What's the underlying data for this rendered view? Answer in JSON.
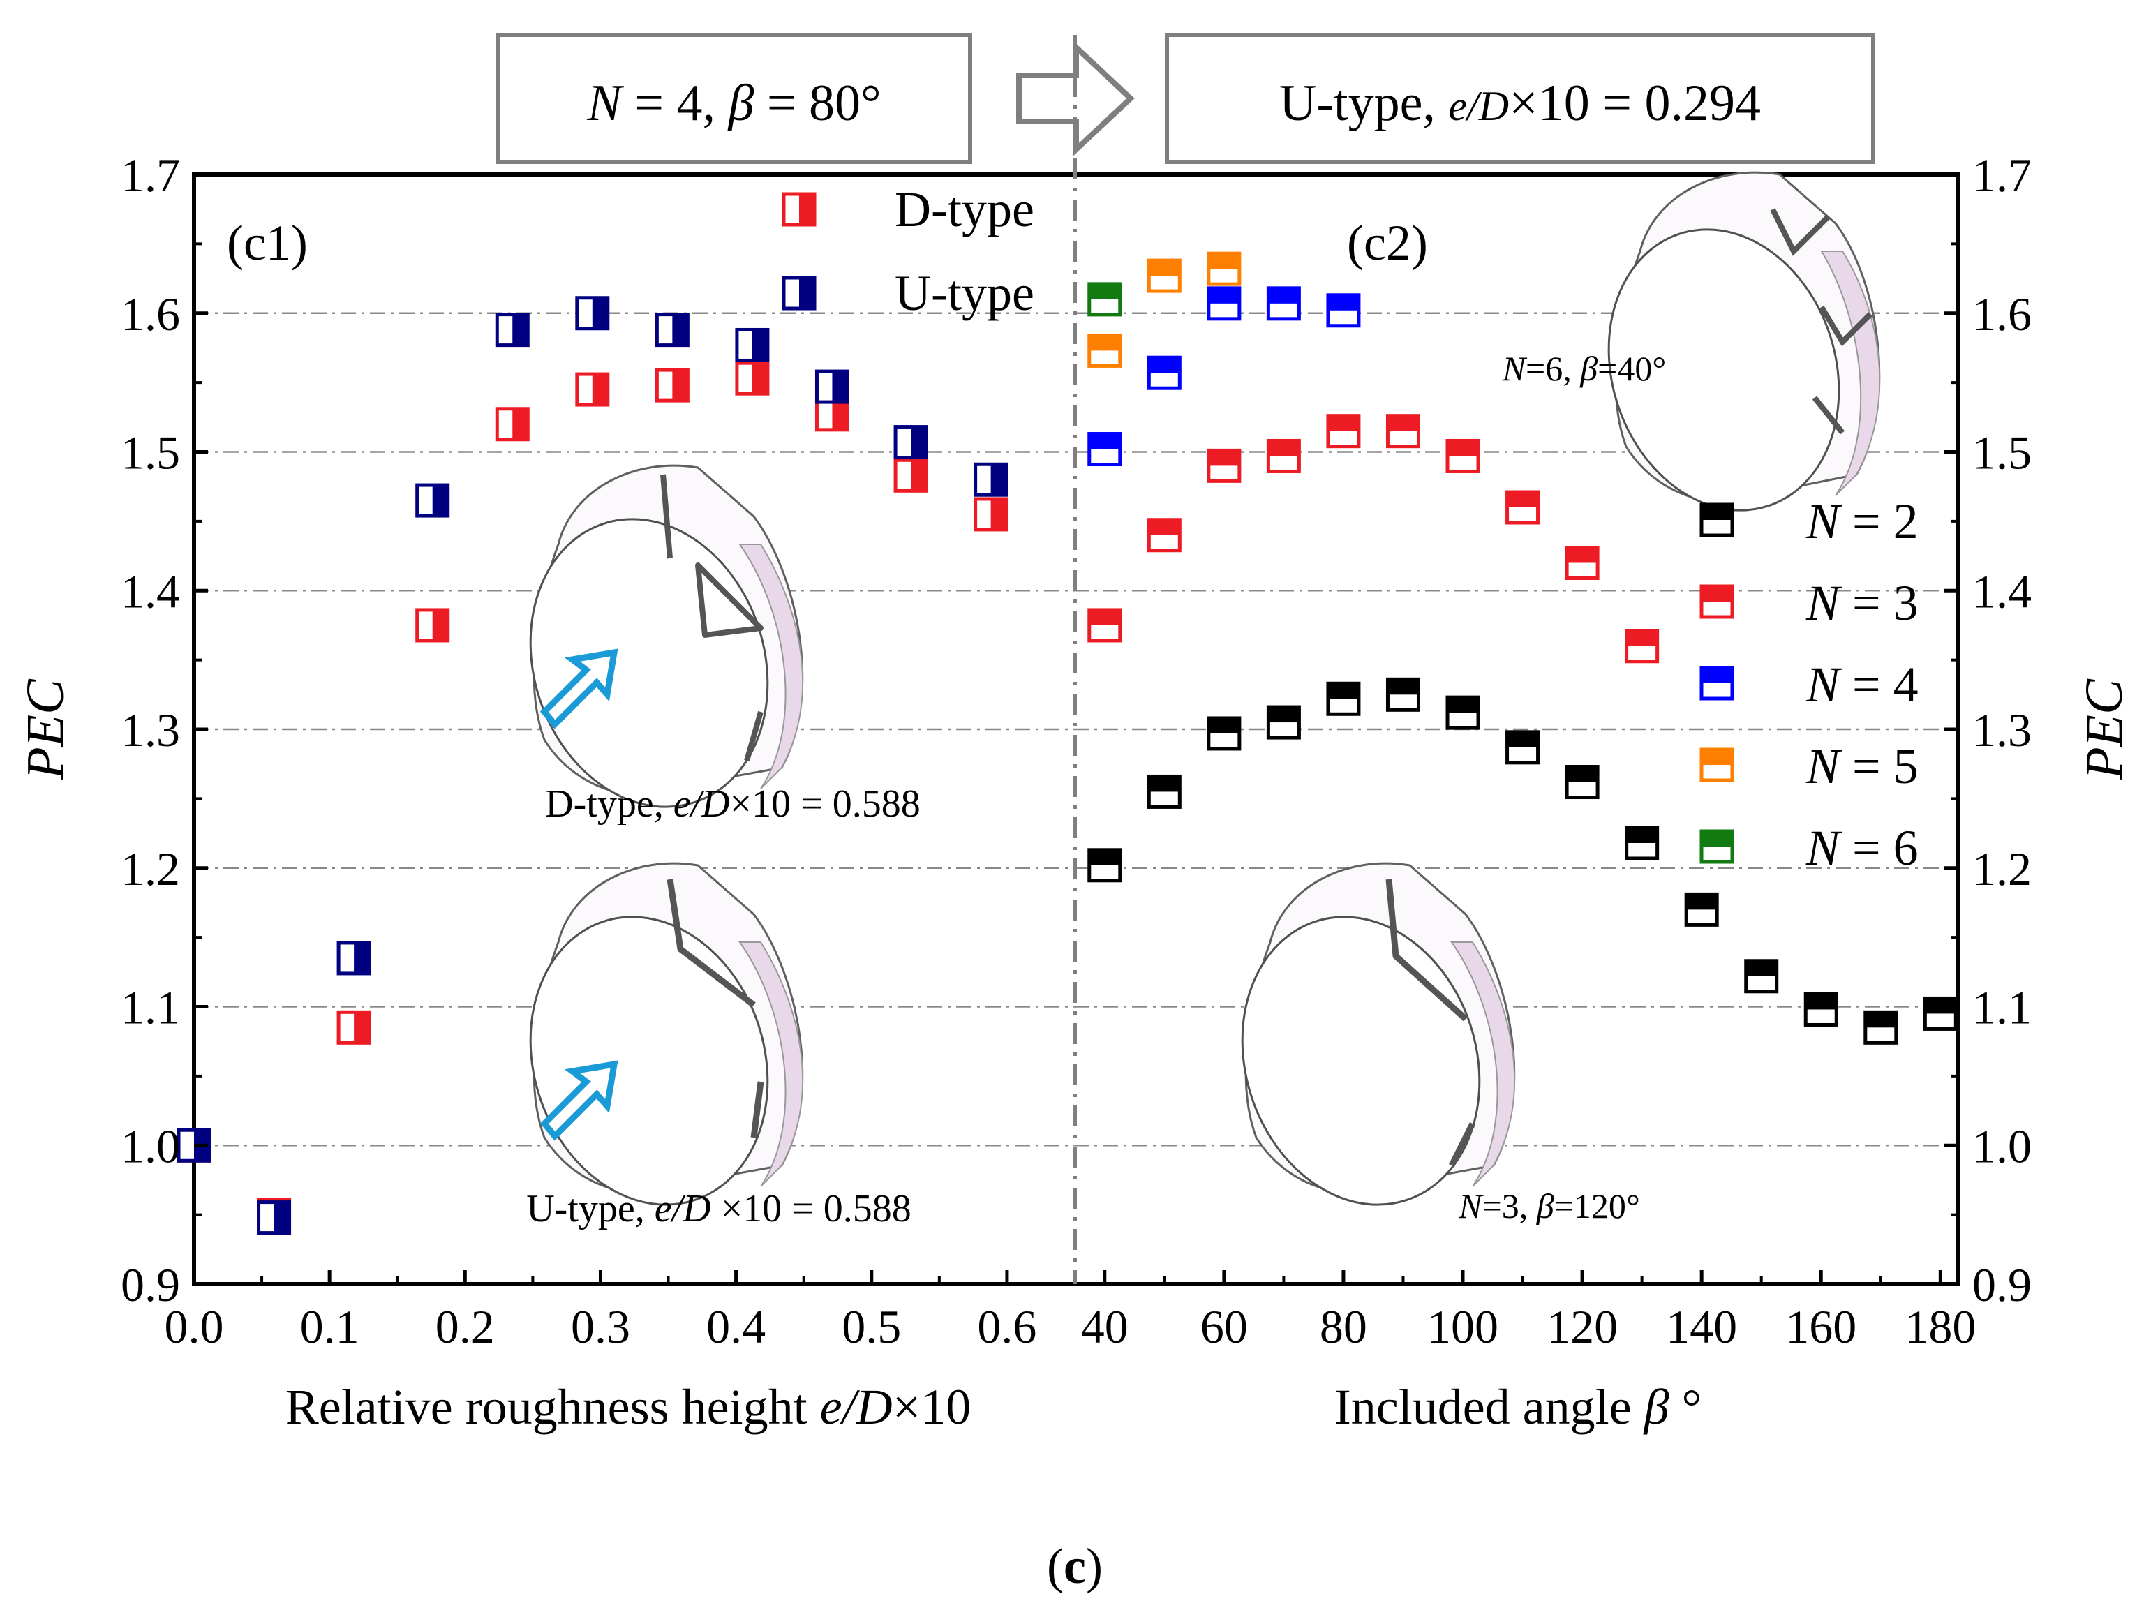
{
  "header": {
    "left_box": {
      "prefix": "N",
      "mid": " = 4, ",
      "beta": "β",
      "suffix": " = 80°"
    },
    "right_box": {
      "prefix": "U-type, ",
      "italic": "e/D",
      "suffix": "×10 = 0.294"
    }
  },
  "caption": {
    "open": "(",
    "letter": "c",
    "close": ")"
  },
  "colors": {
    "axis": "#000000",
    "grid": "#888888",
    "red": "#ed1c24",
    "navy": "#000080",
    "black": "#000000",
    "blue": "#0000ff",
    "orange": "#ff8000",
    "green": "#117a11",
    "arrow": "#1a9ad6",
    "box": "#7f7f7f"
  },
  "chart_data": [
    {
      "type": "scatter",
      "panel": "(c1)",
      "xlabel_text": "Relative roughness height ",
      "xlabel_italic": "e/D",
      "xlabel_suffix": "×10",
      "ylabel": "PEC",
      "xlim": [
        0.0,
        0.65
      ],
      "ylim": [
        0.9,
        1.7
      ],
      "xticks": [
        "0.0",
        "0.1",
        "0.2",
        "0.3",
        "0.4",
        "0.5",
        "0.6"
      ],
      "yticks": [
        "0.9",
        "1.0",
        "1.1",
        "1.2",
        "1.3",
        "1.4",
        "1.5",
        "1.6",
        "1.7"
      ],
      "grid": "horizontal dash-dot",
      "series": [
        {
          "name": "D-type",
          "color": "red",
          "marker": "half-right-filled",
          "x": [
            0.0,
            0.059,
            0.118,
            0.176,
            0.235,
            0.294,
            0.353,
            0.412,
            0.471,
            0.529,
            0.588
          ],
          "y": [
            1.0,
            0.95,
            1.085,
            1.375,
            1.52,
            1.545,
            1.548,
            1.553,
            1.527,
            1.483,
            1.455
          ]
        },
        {
          "name": "U-type",
          "color": "navy",
          "marker": "half-right-filled",
          "x": [
            0.0,
            0.059,
            0.118,
            0.176,
            0.235,
            0.294,
            0.353,
            0.412,
            0.471,
            0.529,
            0.588
          ],
          "y": [
            1.0,
            0.948,
            1.135,
            1.465,
            1.588,
            1.6,
            1.588,
            1.577,
            1.547,
            1.507,
            1.48
          ]
        }
      ],
      "legend": [
        "D-type",
        "U-type"
      ],
      "annotations": [
        {
          "prefix": "D-type, ",
          "italic": "e/D",
          "suffix": "×10 = 0.588"
        },
        {
          "prefix": "U-type, ",
          "italic": "e/D",
          "suffix": " ×10 = 0.588"
        }
      ]
    },
    {
      "type": "scatter",
      "panel": "(c2)",
      "xlabel_text": "Included angle ",
      "xlabel_italic": "β",
      "xlabel_suffix": " °",
      "ylabel": "PEC",
      "xlim": [
        35,
        183
      ],
      "ylim": [
        0.9,
        1.7
      ],
      "xticks": [
        "40",
        "60",
        "80",
        "100",
        "120",
        "140",
        "160",
        "180"
      ],
      "yticks": [
        "0.9",
        "1.0",
        "1.1",
        "1.2",
        "1.3",
        "1.4",
        "1.5",
        "1.6",
        "1.7"
      ],
      "grid": "horizontal dash-dot",
      "series": [
        {
          "name": "N = 2",
          "color": "black",
          "marker": "half-top-filled",
          "x": [
            40,
            50,
            60,
            70,
            80,
            90,
            100,
            110,
            120,
            130,
            140,
            150,
            160,
            170,
            180
          ],
          "y": [
            1.202,
            1.255,
            1.297,
            1.305,
            1.322,
            1.325,
            1.312,
            1.287,
            1.262,
            1.218,
            1.17,
            1.122,
            1.098,
            1.085,
            1.095
          ]
        },
        {
          "name": "N = 3",
          "color": "red",
          "marker": "half-top-filled",
          "x": [
            40,
            50,
            60,
            70,
            80,
            90,
            100,
            110,
            120,
            130
          ],
          "y": [
            1.375,
            1.44,
            1.49,
            1.497,
            1.515,
            1.515,
            1.497,
            1.46,
            1.42,
            1.36
          ]
        },
        {
          "name": "N = 4",
          "color": "blue",
          "marker": "half-top-filled",
          "x": [
            40,
            50,
            60,
            70,
            80
          ],
          "y": [
            1.502,
            1.557,
            1.607,
            1.607,
            1.602
          ]
        },
        {
          "name": "N = 5",
          "color": "orange",
          "marker": "half-top-filled",
          "x": [
            40,
            50,
            60
          ],
          "y": [
            1.573,
            1.627,
            1.632
          ]
        },
        {
          "name": "N = 6",
          "color": "green",
          "marker": "half-top-filled",
          "x": [
            40
          ],
          "y": [
            1.61
          ]
        }
      ],
      "legend": [
        "N = 2",
        "N = 3",
        "N = 4",
        "N = 5",
        "N = 6"
      ],
      "legend_parts": [
        {
          "n": "N",
          "rest": " = 2"
        },
        {
          "n": "N",
          "rest": " = 3"
        },
        {
          "n": "N",
          "rest": " = 4"
        },
        {
          "n": "N",
          "rest": " = 5"
        },
        {
          "n": "N",
          "rest": " = 6"
        }
      ],
      "annotations": [
        {
          "n": "N",
          "a": "=6, ",
          "b": "β",
          "c": "=40°"
        },
        {
          "n": "N",
          "a": "=3, ",
          "b": "β",
          "c": "=120°"
        }
      ]
    }
  ]
}
